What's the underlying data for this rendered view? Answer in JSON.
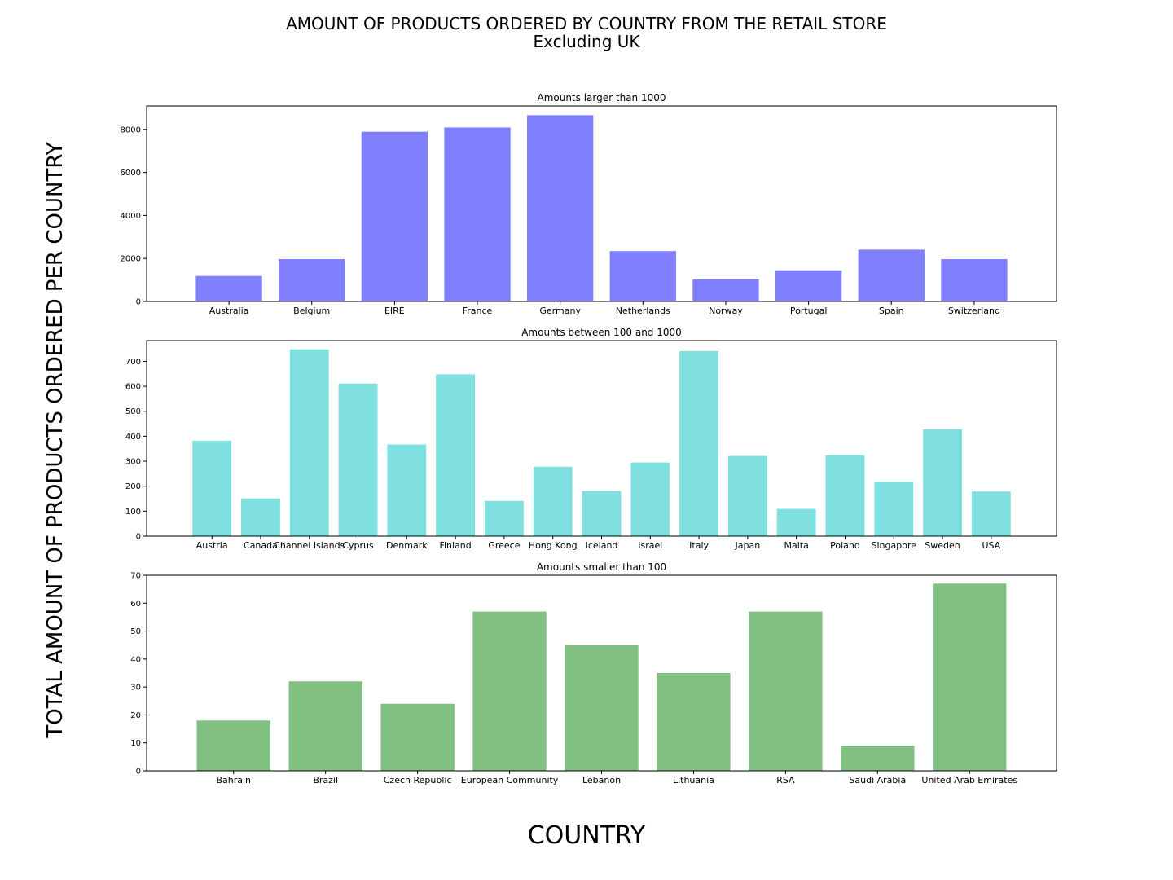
{
  "figure": {
    "title_line1": "AMOUNT OF PRODUCTS ORDERED BY COUNTRY FROM THE RETAIL STORE",
    "title_line2": "Excluding UK",
    "ylabel": "TOTAL AMOUNT OF PRODUCTS ORDERED PER COUNTRY",
    "xlabel": "COUNTRY"
  },
  "chart_data": [
    {
      "type": "bar",
      "title": "Amounts larger than 1000",
      "color": "#8080ff",
      "categories": [
        "Australia",
        "Belgium",
        "EIRE",
        "France",
        "Germany",
        "Netherlands",
        "Norway",
        "Portugal",
        "Spain",
        "Switzerland"
      ],
      "values": [
        1185,
        1970,
        7890,
        8090,
        8660,
        2340,
        1030,
        1450,
        2410,
        1970
      ],
      "ylim": [
        0,
        9090
      ],
      "yticks": [
        0,
        2000,
        4000,
        6000,
        8000
      ],
      "grid": false
    },
    {
      "type": "bar",
      "title": "Amounts between 100 and 1000",
      "color": "#80dfdf",
      "categories": [
        "Austria",
        "Canada",
        "Channel Islands",
        "Cyprus",
        "Denmark",
        "Finland",
        "Greece",
        "Hong Kong",
        "Iceland",
        "Israel",
        "Italy",
        "Japan",
        "Malta",
        "Poland",
        "Singapore",
        "Sweden",
        "USA"
      ],
      "values": [
        382,
        151,
        748,
        611,
        367,
        648,
        141,
        278,
        181,
        295,
        741,
        321,
        109,
        324,
        217,
        428,
        179
      ],
      "ylim": [
        0,
        783
      ],
      "yticks": [
        0,
        100,
        200,
        300,
        400,
        500,
        600,
        700
      ],
      "grid": false
    },
    {
      "type": "bar",
      "title": "Amounts smaller than 100",
      "color": "#80c080",
      "categories": [
        "Bahrain",
        "Brazil",
        "Czech Republic",
        "European Community",
        "Lebanon",
        "Lithuania",
        "RSA",
        "Saudi Arabia",
        "United Arab Emirates"
      ],
      "values": [
        18,
        32,
        24,
        57,
        45,
        35,
        57,
        9,
        67
      ],
      "ylim": [
        0,
        70
      ],
      "yticks": [
        0,
        10,
        20,
        30,
        40,
        50,
        60,
        70
      ],
      "grid": false
    }
  ]
}
